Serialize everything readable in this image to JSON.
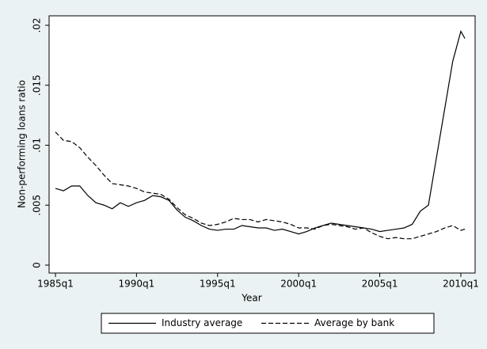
{
  "chart_data": {
    "type": "line",
    "x_label": "Year",
    "y_label": "Non-performing loans ratio",
    "x": [
      1985,
      1985.5,
      1986,
      1986.5,
      1987,
      1987.5,
      1988,
      1988.5,
      1989,
      1989.5,
      1990,
      1990.5,
      1991,
      1991.5,
      1992,
      1992.5,
      1993,
      1993.5,
      1994,
      1994.5,
      1995,
      1995.5,
      1996,
      1996.5,
      1997,
      1997.5,
      1998,
      1998.5,
      1999,
      1999.5,
      2000,
      2000.5,
      2001,
      2001.5,
      2002,
      2002.5,
      2003,
      2003.5,
      2004,
      2004.5,
      2005,
      2005.5,
      2006,
      2006.5,
      2007,
      2007.5,
      2008,
      2008.5,
      2009,
      2009.5,
      2010,
      2010.25
    ],
    "series": [
      {
        "name": "Industry average",
        "color": "#000000",
        "dash": false,
        "values": [
          0.0064,
          0.0062,
          0.0066,
          0.0066,
          0.0058,
          0.0052,
          0.005,
          0.0047,
          0.0052,
          0.0049,
          0.0052,
          0.0054,
          0.0058,
          0.0057,
          0.0054,
          0.0046,
          0.004,
          0.0037,
          0.0033,
          0.003,
          0.0029,
          0.003,
          0.003,
          0.0033,
          0.0032,
          0.0031,
          0.0031,
          0.0029,
          0.003,
          0.0028,
          0.0026,
          0.0028,
          0.0031,
          0.0033,
          0.0035,
          0.0034,
          0.0033,
          0.0032,
          0.0031,
          0.003,
          0.0028,
          0.0029,
          0.003,
          0.0031,
          0.0034,
          0.0045,
          0.005,
          0.009,
          0.013,
          0.017,
          0.0195,
          0.0189
        ]
      },
      {
        "name": "Average by bank",
        "color": "#000000",
        "dash": true,
        "values": [
          0.0111,
          0.0104,
          0.0103,
          0.0098,
          0.009,
          0.0083,
          0.0075,
          0.0068,
          0.0067,
          0.0066,
          0.0064,
          0.0061,
          0.006,
          0.0059,
          0.0055,
          0.0048,
          0.0042,
          0.0039,
          0.0035,
          0.0033,
          0.0034,
          0.0036,
          0.0039,
          0.0038,
          0.0038,
          0.0036,
          0.0038,
          0.0037,
          0.0036,
          0.0034,
          0.0031,
          0.0031,
          0.003,
          0.0033,
          0.0034,
          0.0033,
          0.0032,
          0.003,
          0.0031,
          0.0027,
          0.0024,
          0.0022,
          0.0023,
          0.0022,
          0.0022,
          0.0024,
          0.0026,
          0.0028,
          0.0031,
          0.0033,
          0.0029,
          0.003
        ]
      }
    ],
    "xlim": [
      1984.61,
      2010.88
    ],
    "xticks": [
      {
        "value": 1985,
        "label": "1985q1"
      },
      {
        "value": 1990,
        "label": "1990q1"
      },
      {
        "value": 1995,
        "label": "1995q1"
      },
      {
        "value": 2000,
        "label": "2000q1"
      },
      {
        "value": 2005,
        "label": "2005q1"
      },
      {
        "value": 2010,
        "label": "2010q1"
      }
    ],
    "ylim": [
      -0.00066,
      0.02079
    ],
    "yticks": [
      0,
      {
        "value": 0.005,
        "label": ".005"
      },
      {
        "value": 0.01,
        "label": ".01"
      },
      {
        "value": 0.015,
        "label": ".015"
      },
      {
        "value": 0.02,
        "label": ".02"
      }
    ],
    "grid": false,
    "legend": "bottom"
  }
}
